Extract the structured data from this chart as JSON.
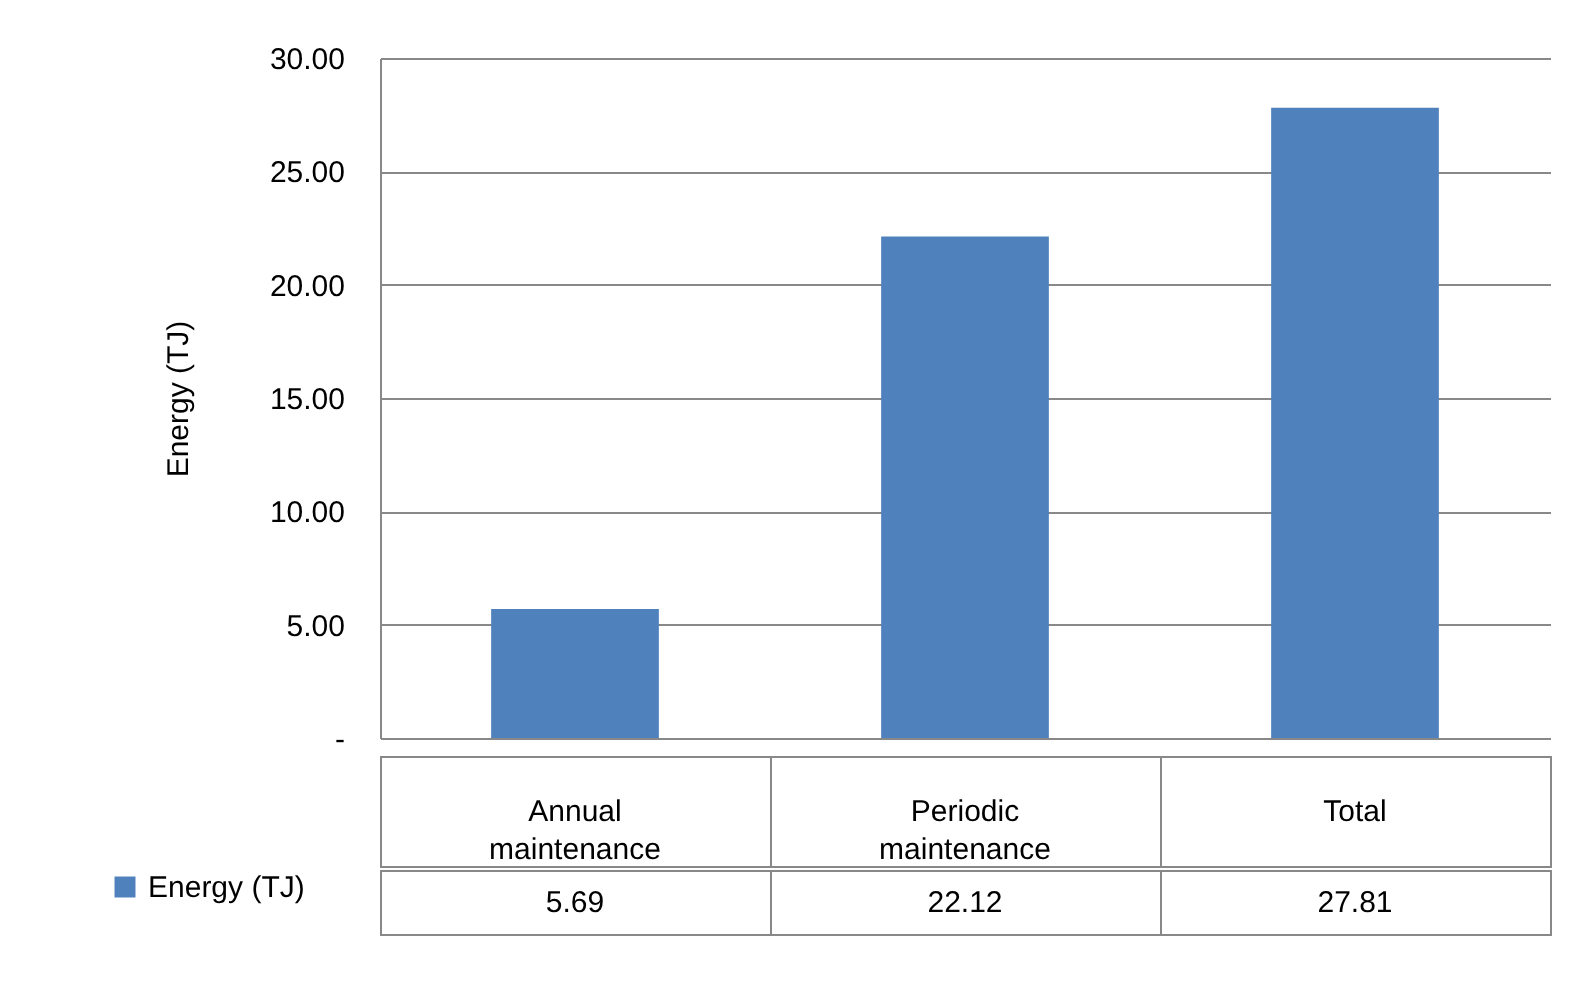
{
  "chart_data": {
    "type": "bar",
    "ylabel": "Energy (TJ)",
    "categories": [
      "Annual maintenance",
      "Periodic maintenance",
      "Total"
    ],
    "series": [
      {
        "name": "Energy (TJ)",
        "color": "#4f81bd",
        "values": [
          5.69,
          22.12,
          27.81
        ]
      }
    ],
    "ylim": [
      0,
      30
    ],
    "yticks": [
      {
        "value": 0,
        "label": "-"
      },
      {
        "value": 5,
        "label": "5.00"
      },
      {
        "value": 10,
        "label": "10.00"
      },
      {
        "value": 15,
        "label": "15.00"
      },
      {
        "value": 20,
        "label": "20.00"
      },
      {
        "value": 25,
        "label": "25.00"
      },
      {
        "value": 30,
        "label": "30.00"
      }
    ],
    "grid": "y",
    "data_labels": true,
    "legend": "bottom left"
  }
}
